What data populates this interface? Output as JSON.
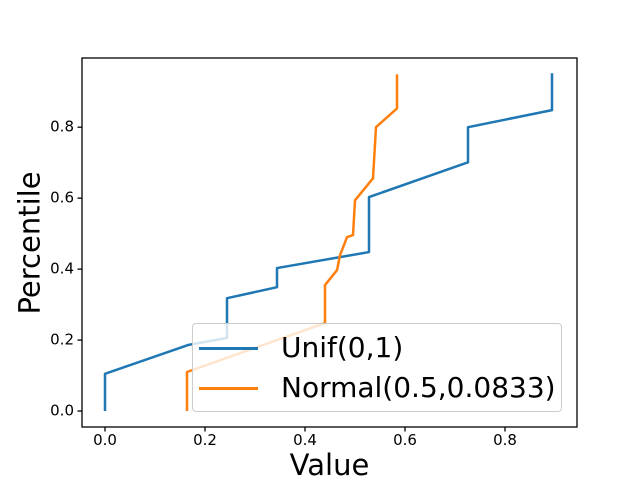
{
  "figure": {
    "background": "#ffffff",
    "frame_color": "#000000",
    "tick_color": "#000000"
  },
  "axes": {
    "xlabel": "Value",
    "ylabel": "Percentile",
    "xtick_labels": [
      "0.0",
      "0.2",
      "0.4",
      "0.6",
      "0.8"
    ],
    "ytick_labels": [
      "0.0",
      "0.2",
      "0.4",
      "0.6",
      "0.8"
    ]
  },
  "legend": {
    "items": [
      {
        "label": "Unif(0,1)",
        "color": "#1f77b4"
      },
      {
        "label": "Normal(0.5,0.0833)",
        "color": "#ff7f0e"
      }
    ]
  },
  "chart_data": {
    "type": "line",
    "title": "",
    "xlabel": "Value",
    "ylabel": "Percentile",
    "xlim": [
      -0.046,
      0.944
    ],
    "ylim": [
      -0.045,
      0.995
    ],
    "xticks": [
      0.0,
      0.2,
      0.4,
      0.6,
      0.8
    ],
    "yticks": [
      0.0,
      0.2,
      0.4,
      0.6,
      0.8
    ],
    "grid": false,
    "legend_position": "lower center, inside axes",
    "description": "Percentile (empirical CDF) plot of two samples: sorted sample values (x) vs percentile (y), points joined by straight lines",
    "series": [
      {
        "name": "Unif(0,1)",
        "color": "#1f77b4",
        "x": [
          0.0,
          0.0,
          0.166,
          0.244,
          0.244,
          0.344,
          0.344,
          0.528,
          0.528,
          0.726,
          0.726,
          0.894,
          0.894
        ],
        "y": [
          0.0,
          0.105,
          0.186,
          0.206,
          0.318,
          0.349,
          0.403,
          0.448,
          0.603,
          0.701,
          0.8,
          0.848,
          0.952
        ]
      },
      {
        "name": "Normal(0.5,0.0833)",
        "color": "#ff7f0e",
        "x": [
          0.164,
          0.164,
          0.44,
          0.44,
          0.464,
          0.47,
          0.484,
          0.496,
          0.5,
          0.536,
          0.542,
          0.584,
          0.584
        ],
        "y": [
          0.0,
          0.11,
          0.248,
          0.355,
          0.397,
          0.439,
          0.49,
          0.496,
          0.594,
          0.656,
          0.8,
          0.853,
          0.949
        ]
      }
    ]
  }
}
